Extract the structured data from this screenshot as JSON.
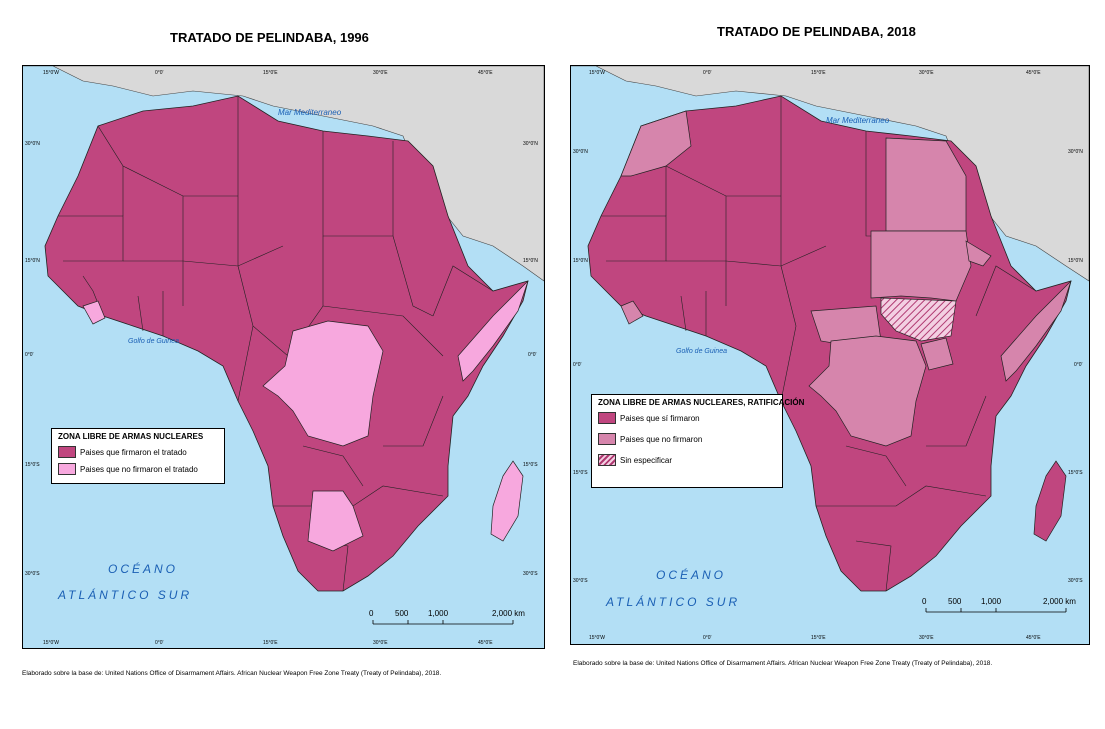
{
  "maps": [
    {
      "title": "TRATADO DE PELINDABA, 1996",
      "sea_label": "Mar Mediterraneo",
      "gulf_label": "Golfo de Guinea",
      "ocean_line1": "OCÉANO",
      "ocean_line2": "ATLÁNTICO SUR",
      "lon_labels": [
        "15°0'W",
        "0°0'",
        "15°0'E",
        "30°0'E",
        "45°0'E"
      ],
      "lat_labels": [
        "30°0'N",
        "15°0'N",
        "0°0'",
        "15°0'S",
        "30°0'S"
      ],
      "scale": {
        "ticks": [
          "0",
          "500",
          "1,000",
          "2,000 km"
        ]
      },
      "legend": {
        "title": "ZONA LIBRE DE ARMAS NUCLEARES",
        "items": [
          {
            "label": "Paises que firmaron el tratado",
            "color": "#c0467f"
          },
          {
            "label": "Paises que no firmaron el tratado",
            "color": "#f7a8de"
          }
        ]
      },
      "source": "Elaborado sobre la base de: United Nations Office of Disarmament Affairs. African Nuclear Weapon Free Zone Treaty (Treaty of Pelindaba), 2018."
    },
    {
      "title": "TRATADO DE PELINDABA, 2018",
      "sea_label": "Mar Mediterraneo",
      "gulf_label": "Golfo de Guinea",
      "ocean_line1": "OCÉANO",
      "ocean_line2": "ATLÁNTICO SUR",
      "lon_labels": [
        "15°0'W",
        "0°0'",
        "15°0'E",
        "30°0'E",
        "45°0'E"
      ],
      "lat_labels": [
        "30°0'N",
        "15°0'N",
        "0°0'",
        "15°0'S",
        "30°0'S"
      ],
      "scale": {
        "ticks": [
          "0",
          "500",
          "1,000",
          "2,000 km"
        ]
      },
      "legend": {
        "title": "ZONA LIBRE DE ARMAS NUCLEARES, RATIFICACIÓN",
        "items": [
          {
            "label": "Paises que sí firmaron",
            "color": "#c0467f"
          },
          {
            "label": "Paises que no firmaron",
            "color": "#d685ac"
          },
          {
            "label": "Sin especificar",
            "color": "hatched"
          }
        ]
      },
      "source": "Elaborado sobre la base de: United Nations Office of Disarmament Affairs. African Nuclear Weapon Free Zone Treaty (Treaty of Pelindaba), 2018."
    }
  ],
  "colors": {
    "water": "#b3dff5",
    "land_other": "#d9d9d9",
    "signed": "#c0467f",
    "not_signed_1996": "#f7a8de",
    "not_signed_2018": "#d685ac",
    "border": "#222222"
  }
}
